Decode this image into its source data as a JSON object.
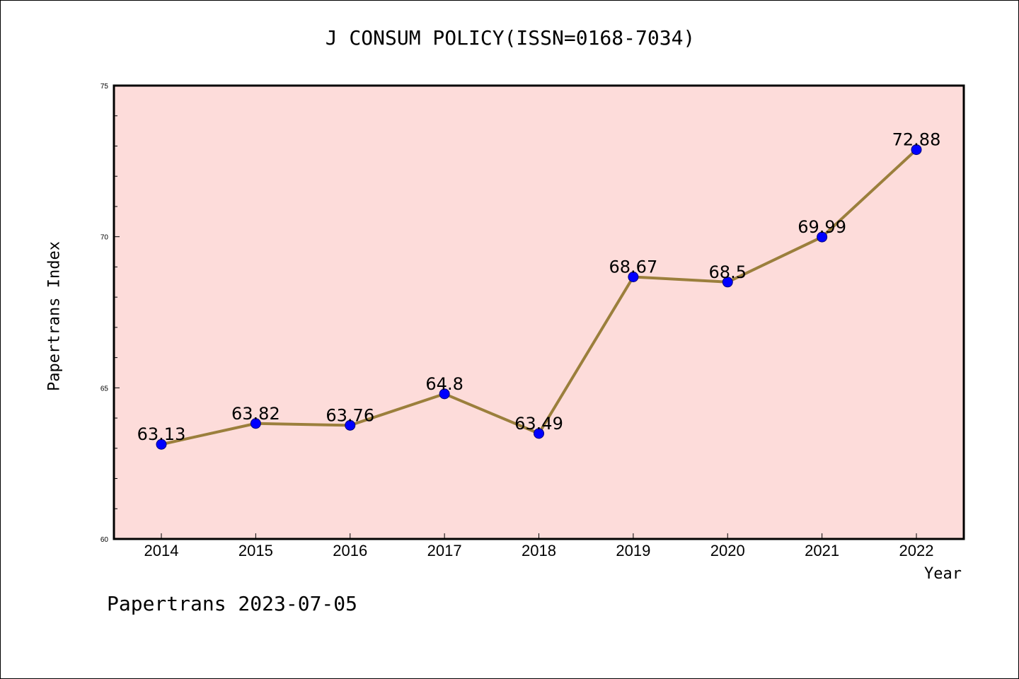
{
  "chart_data": {
    "type": "line",
    "title": "J CONSUM POLICY(ISSN=0168-7034)",
    "xlabel": "Year",
    "ylabel": "Papertrans Index",
    "categories": [
      "2014",
      "2015",
      "2016",
      "2017",
      "2018",
      "2019",
      "2020",
      "2021",
      "2022"
    ],
    "series": [
      {
        "values": [
          63.13,
          63.82,
          63.76,
          64.8,
          63.49,
          68.67,
          68.5,
          69.99,
          72.88
        ],
        "data_labels": [
          "63.13",
          "63.82",
          "63.76",
          "64.8",
          "63.49",
          "68.67",
          "68.5",
          "69.99",
          "72.88"
        ],
        "line_color": "#9b7f3c",
        "marker_color": "#0000ff"
      }
    ],
    "ylim": [
      60,
      75
    ],
    "yticks": [
      "60",
      "65",
      "70",
      "75"
    ],
    "plot_background": "#fddcda",
    "grid": false,
    "legend": "none"
  },
  "footer": "Papertrans 2023-07-05"
}
